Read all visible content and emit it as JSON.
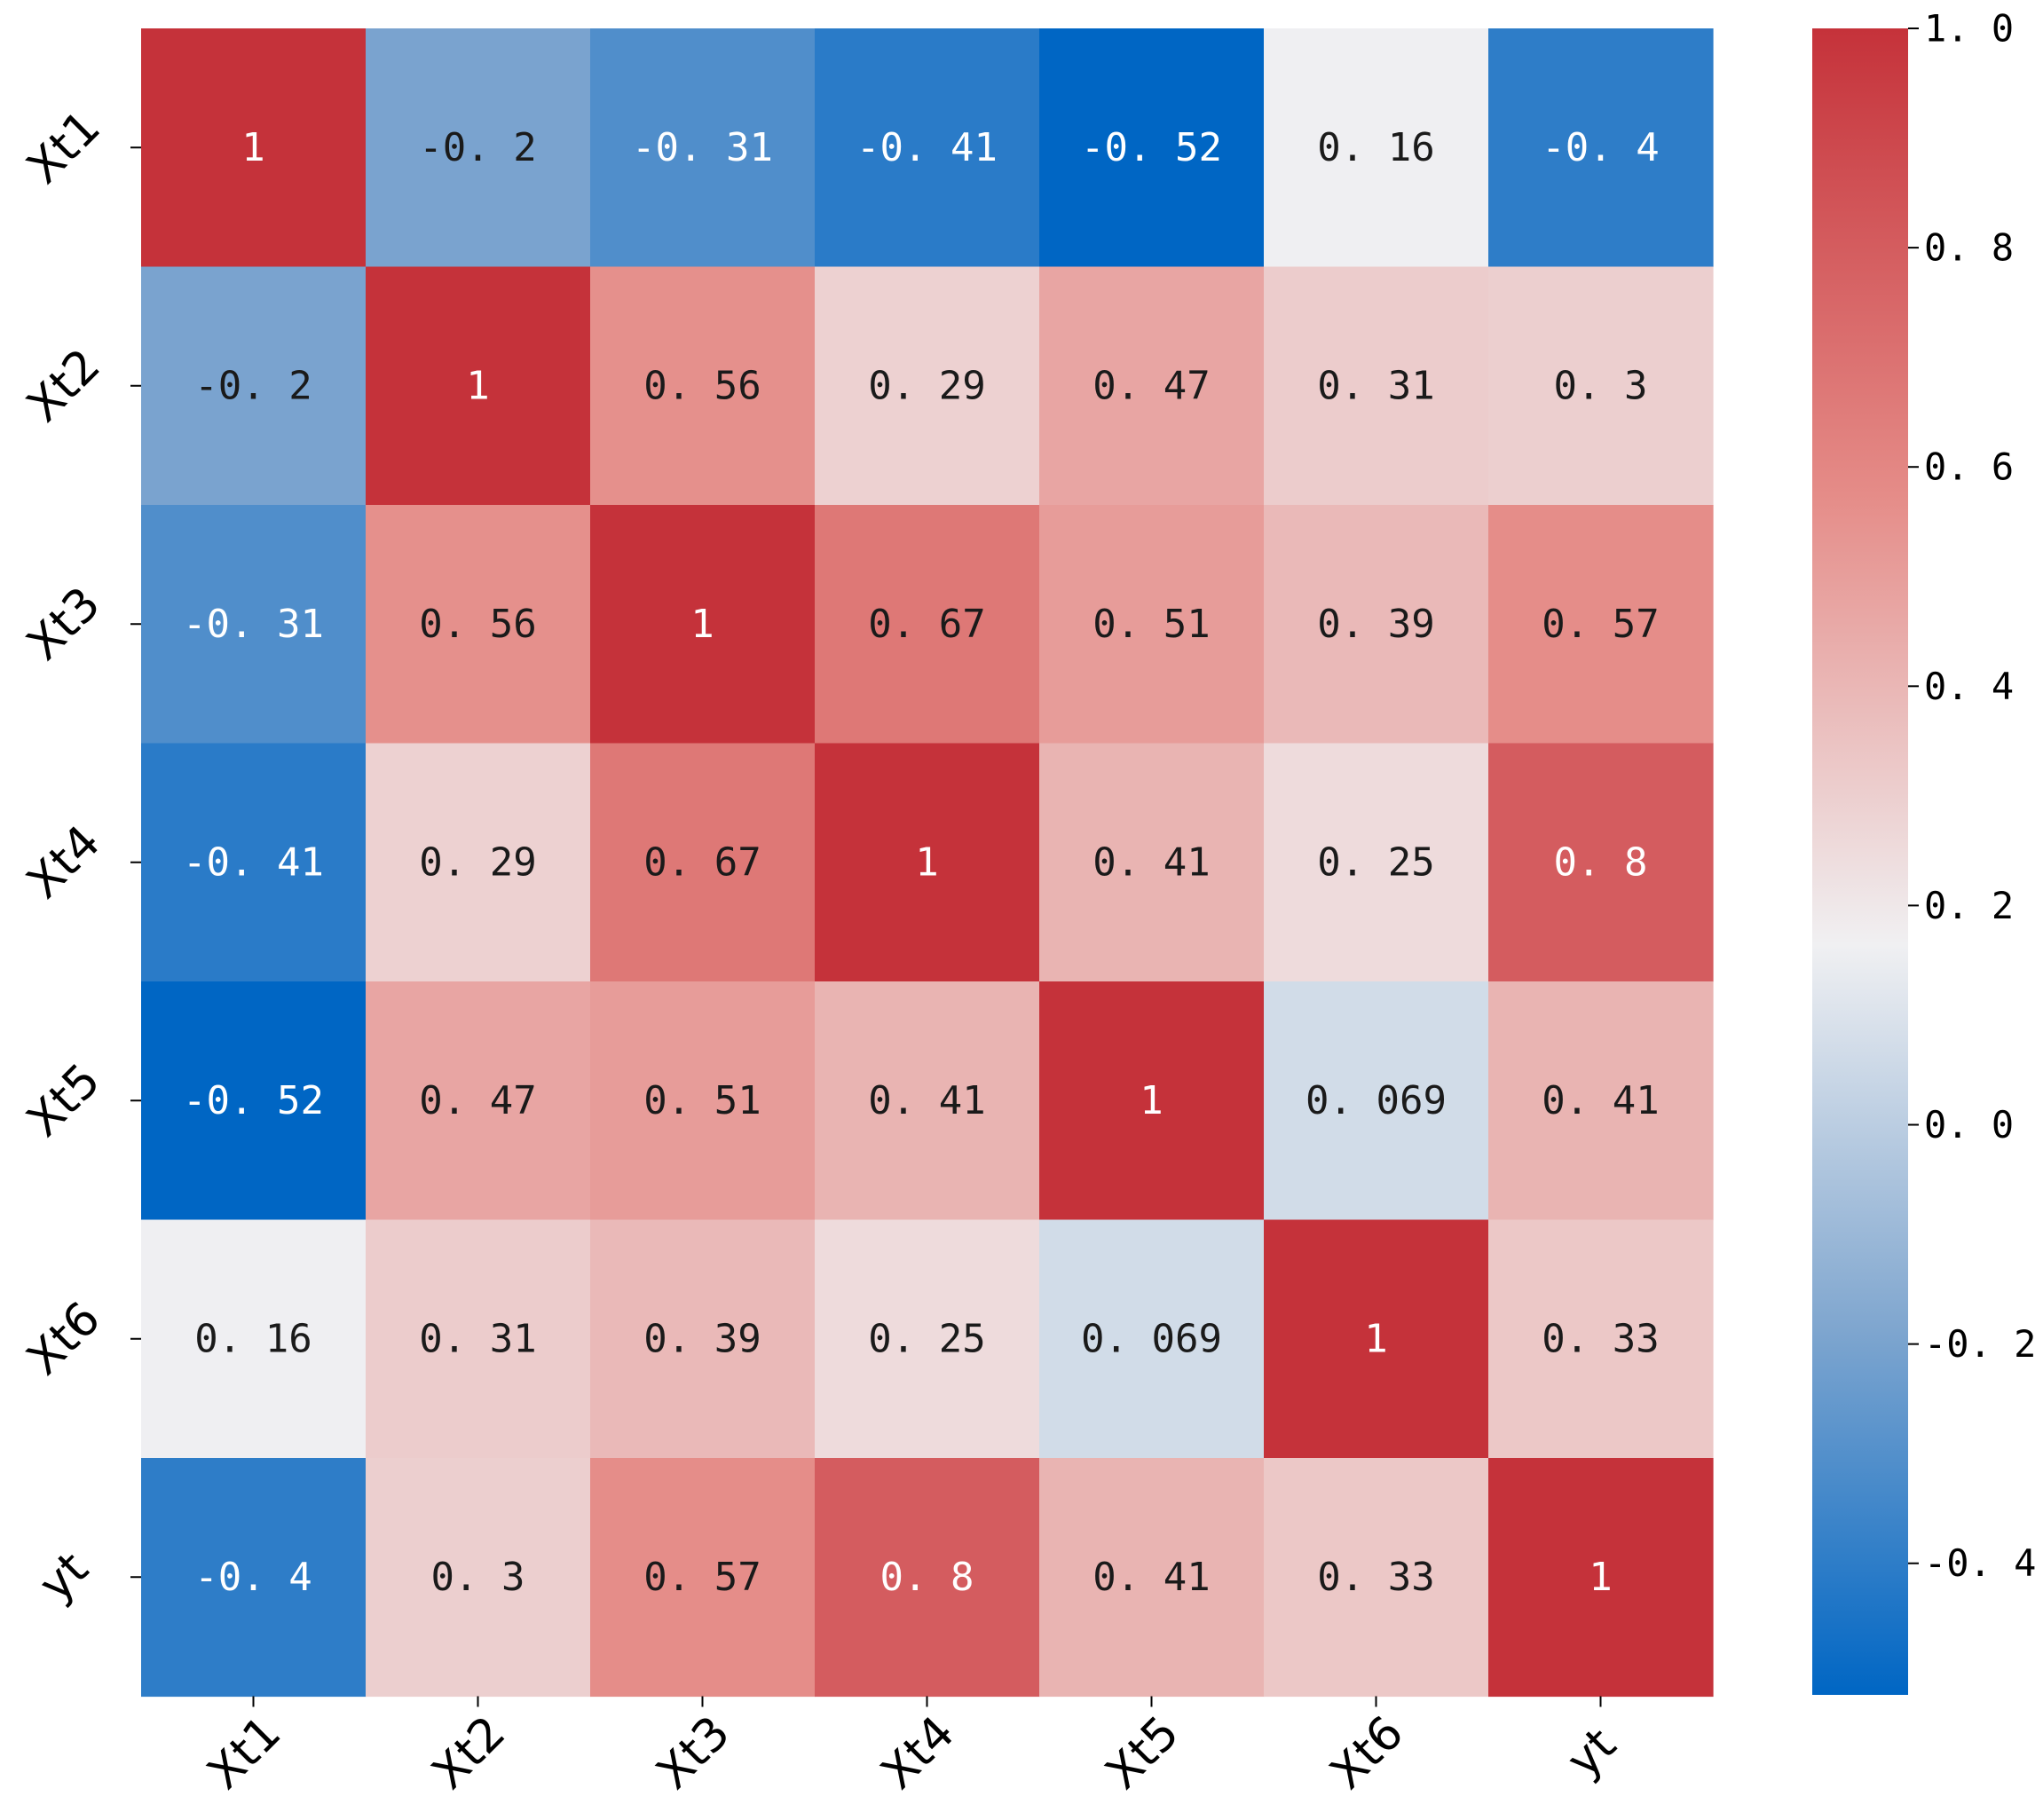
{
  "chart_data": {
    "type": "heatmap",
    "title": "",
    "xlabel": "",
    "ylabel": "",
    "x_labels": [
      "Xt1",
      "Xt2",
      "Xt3",
      "Xt4",
      "Xt5",
      "Xt6",
      "yt"
    ],
    "y_labels": [
      "Xt1",
      "Xt2",
      "Xt3",
      "Xt4",
      "Xt5",
      "Xt6",
      "yt"
    ],
    "values": [
      [
        1,
        -0.2,
        -0.31,
        -0.41,
        -0.52,
        0.16,
        -0.4
      ],
      [
        -0.2,
        1,
        0.56,
        0.29,
        0.47,
        0.31,
        0.3
      ],
      [
        -0.31,
        0.56,
        1,
        0.67,
        0.51,
        0.39,
        0.57
      ],
      [
        -0.41,
        0.29,
        0.67,
        1,
        0.41,
        0.25,
        0.8
      ],
      [
        -0.52,
        0.47,
        0.51,
        0.41,
        1,
        0.069,
        0.41
      ],
      [
        0.16,
        0.31,
        0.39,
        0.25,
        0.069,
        1,
        0.33
      ],
      [
        -0.4,
        0.3,
        0.57,
        0.8,
        0.41,
        0.33,
        1
      ]
    ],
    "annotations": [
      [
        "1",
        "-0. 2",
        "-0. 31",
        "-0. 41",
        "-0. 52",
        "0. 16",
        "-0. 4"
      ],
      [
        "-0. 2",
        "1",
        "0. 56",
        "0. 29",
        "0. 47",
        "0. 31",
        "0. 3"
      ],
      [
        "-0. 31",
        "0. 56",
        "1",
        "0. 67",
        "0. 51",
        "0. 39",
        "0. 57"
      ],
      [
        "-0. 41",
        "0. 29",
        "0. 67",
        "1",
        "0. 41",
        "0. 25",
        "0. 8"
      ],
      [
        "-0. 52",
        "0. 47",
        "0. 51",
        "0. 41",
        "1",
        "0. 069",
        "0. 41"
      ],
      [
        "0. 16",
        "0. 31",
        "0. 39",
        "0. 25",
        "0. 069",
        "1",
        "0. 33"
      ],
      [
        "-0. 4",
        "0. 3",
        "0. 57",
        "0. 8",
        "0. 41",
        "0. 33",
        "1"
      ]
    ],
    "colorbar": {
      "vmin": -0.52,
      "vmax": 1.0,
      "ticks": [
        1.0,
        0.8,
        0.6,
        0.4,
        0.2,
        0.0,
        -0.2,
        -0.4
      ],
      "tick_labels": [
        "1. 0",
        "0. 8",
        "0. 6",
        "0. 4",
        "0. 2",
        "0. 0",
        "-0. 2",
        "-0. 4"
      ],
      "colors": {
        "low": "#0066c4",
        "mid_low": "#7fa6cf",
        "center": "#f0f0f2",
        "mid_high": "#e58c88",
        "high": "#c5323a"
      }
    }
  }
}
